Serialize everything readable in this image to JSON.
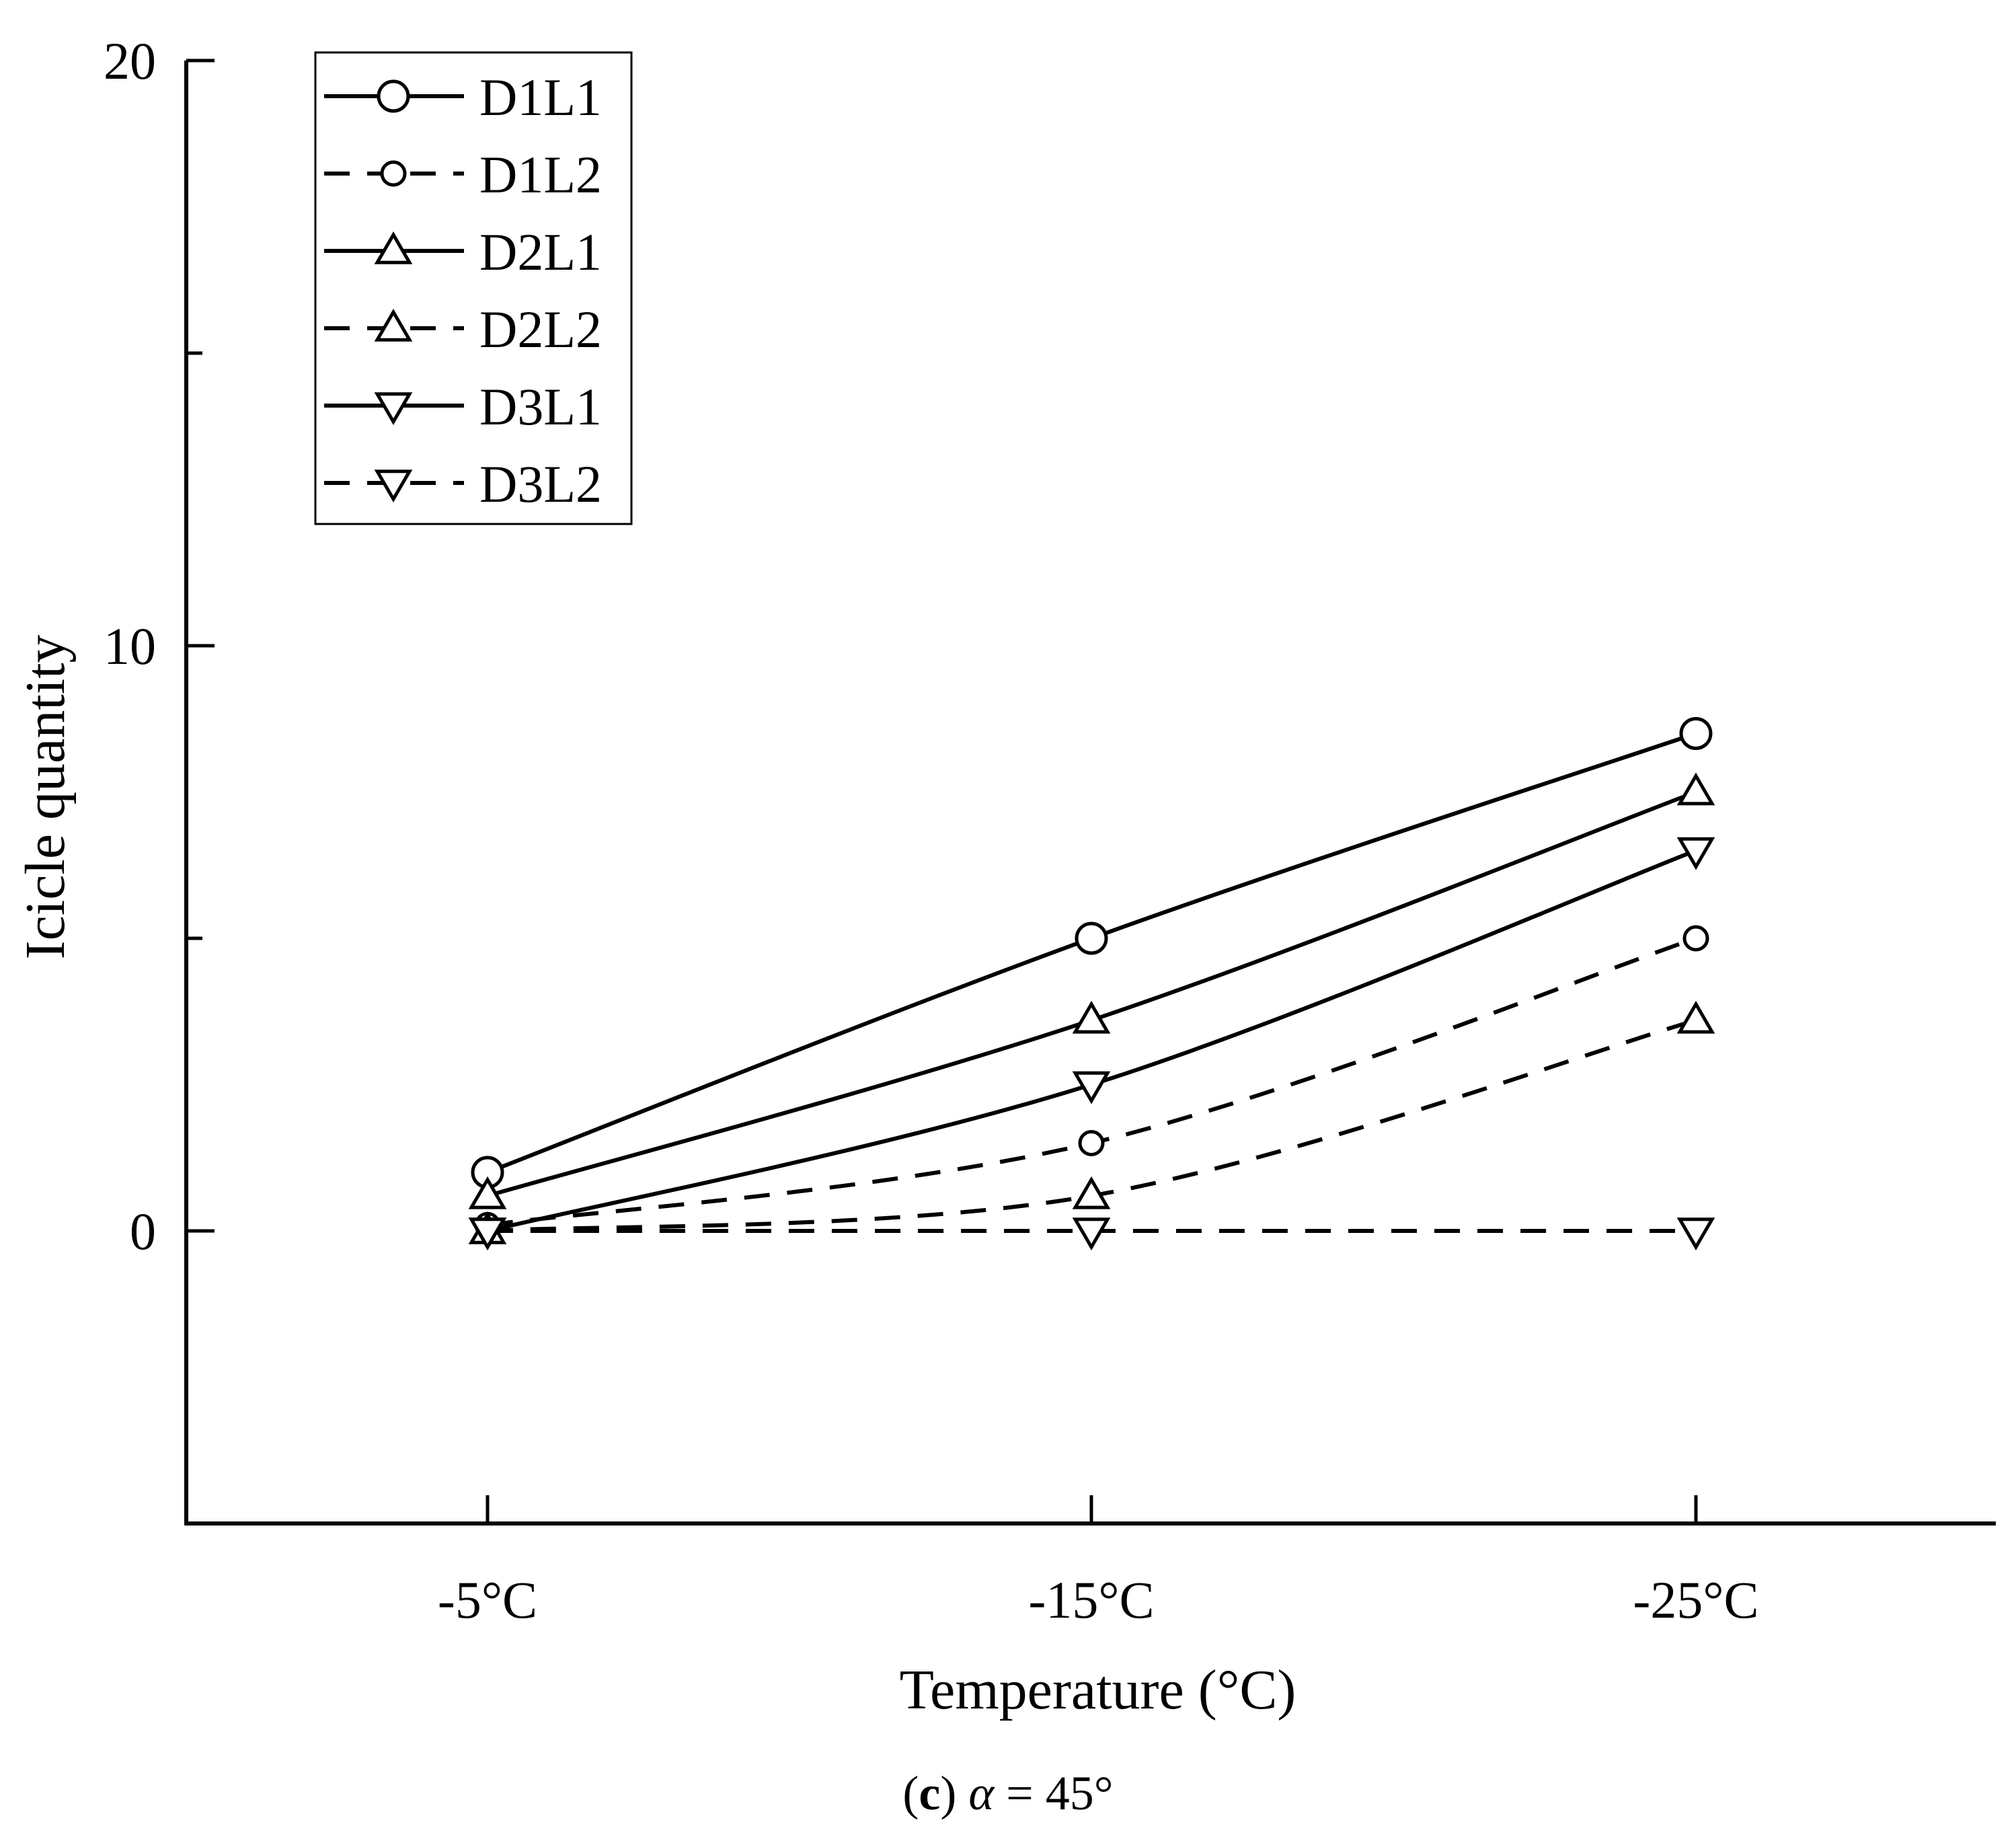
{
  "chart_data": {
    "type": "line",
    "title": "",
    "xlabel": "Temperature (°C)",
    "ylabel": "Icicle quantity",
    "categories": [
      "-5°C",
      "-15°C",
      "-25°C"
    ],
    "ylim": [
      -5,
      20
    ],
    "yticks": [
      0,
      10,
      20
    ],
    "yticklabels": [
      "0",
      "10",
      "20"
    ],
    "legend_position": "top-left",
    "series": [
      {
        "name": "D1L1",
        "values": [
          1.0,
          5.0,
          8.5
        ],
        "line": "solid",
        "marker": "circle",
        "marker_size": "large"
      },
      {
        "name": "D1L2",
        "values": [
          0.1,
          1.5,
          5.0
        ],
        "line": "dashed",
        "marker": "circle",
        "marker_size": "small"
      },
      {
        "name": "D2L1",
        "values": [
          0.6,
          3.6,
          7.5
        ],
        "line": "solid",
        "marker": "triangle-up",
        "marker_size": "normal"
      },
      {
        "name": "D2L2",
        "values": [
          0.0,
          0.6,
          3.6
        ],
        "line": "dashed",
        "marker": "triangle-up",
        "marker_size": "normal"
      },
      {
        "name": "D3L1",
        "values": [
          0.0,
          2.5,
          6.5
        ],
        "line": "solid",
        "marker": "triangle-down",
        "marker_size": "normal"
      },
      {
        "name": "D3L2",
        "values": [
          0.0,
          0.0,
          0.0
        ],
        "line": "dashed",
        "marker": "triangle-down",
        "marker_size": "normal"
      }
    ]
  },
  "caption": {
    "label": "c",
    "symbol": "α",
    "equals_value": " = 45°"
  }
}
